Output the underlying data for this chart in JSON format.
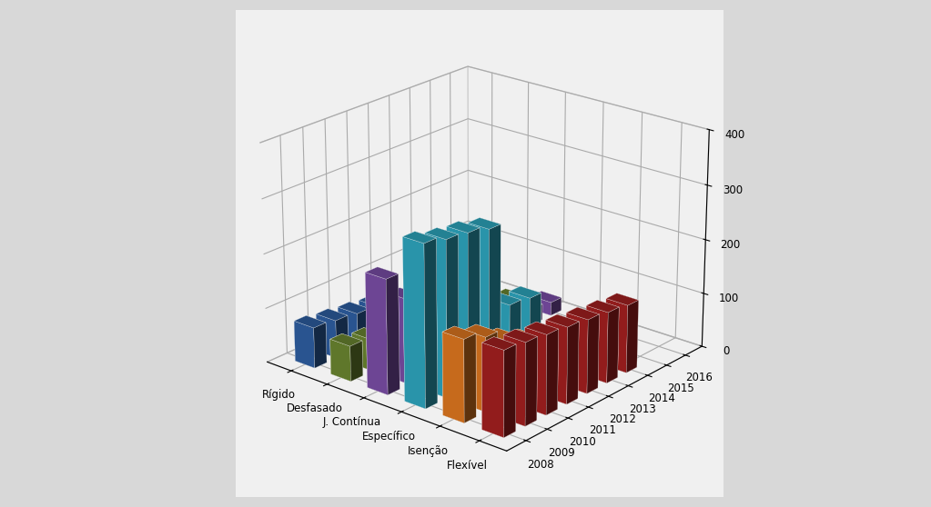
{
  "categories": [
    "Rígido",
    "Desfasado",
    "J. Contínua",
    "Específico",
    "Isenção",
    "Flexível"
  ],
  "years": [
    2008,
    2009,
    2010,
    2011,
    2012,
    2013,
    2014,
    2015,
    2016
  ],
  "values": {
    "Rígido": [
      75,
      70,
      65,
      60,
      55,
      0,
      0,
      0,
      0
    ],
    "Desfasado": [
      65,
      58,
      50,
      45,
      15,
      12,
      10,
      8,
      7
    ],
    "J. Contínua": [
      210,
      155,
      100,
      80,
      60,
      50,
      40,
      30,
      25
    ],
    "Específico": [
      295,
      285,
      280,
      270,
      115,
      110,
      0,
      0,
      0
    ],
    "Isenção": [
      150,
      135,
      110,
      90,
      75,
      60,
      55,
      0,
      0
    ],
    "Flexível": [
      155,
      150,
      145,
      140,
      135,
      130,
      125,
      0,
      0
    ]
  },
  "colors": {
    "Rígido": "#2E5FA3",
    "Desfasado": "#6B8731",
    "J. Contínua": "#7B4EA8",
    "Específico": "#2EA8C0",
    "Isenção": "#E07820",
    "Flexível": "#A52020"
  },
  "zlim": [
    0,
    400
  ],
  "zticks": [
    0,
    100,
    200,
    300,
    400
  ],
  "elev": 22,
  "azim": -50,
  "bar_width": 0.55,
  "bar_depth": 0.55,
  "fig_facecolor": "#d8d8d8"
}
